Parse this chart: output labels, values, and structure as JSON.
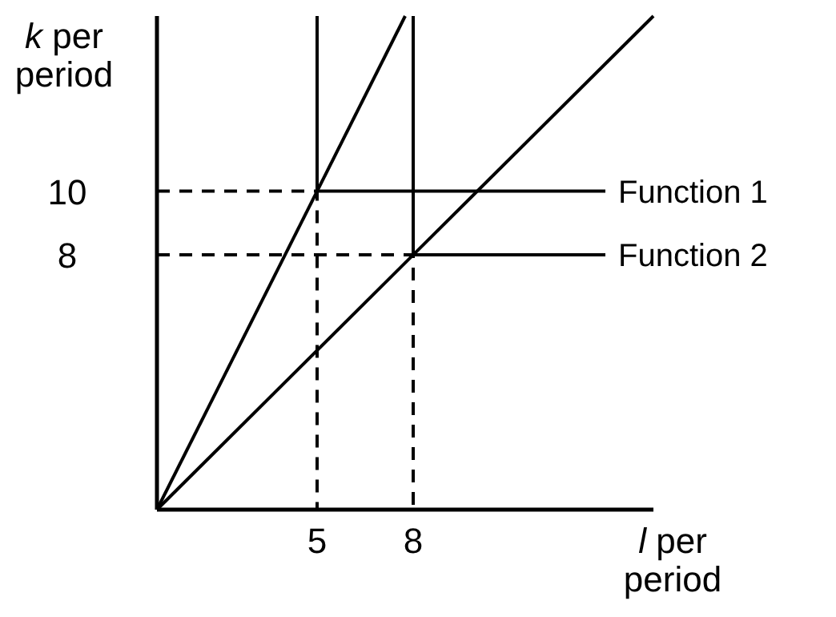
{
  "chart_data": {
    "type": "line",
    "xlabel": "l per period",
    "ylabel": "k per period",
    "xlim": [
      0,
      15.5
    ],
    "ylim": [
      0,
      15.5
    ],
    "xticks": [
      5,
      8
    ],
    "yticks": [
      8,
      10
    ],
    "grid": false,
    "marker": "none",
    "line_style": "solid",
    "series": [
      {
        "name": "Function 1",
        "color": "#000000",
        "x": [
          5,
          5,
          14
        ],
        "values": [
          15.5,
          10,
          10
        ]
      },
      {
        "name": "Function 2",
        "color": "#000000",
        "x": [
          8,
          8,
          14
        ],
        "values": [
          15.5,
          8,
          8
        ]
      },
      {
        "color": "#000000",
        "x": [
          0,
          7.75
        ],
        "values": [
          0,
          15.5
        ]
      },
      {
        "color": "#000000",
        "x": [
          0,
          15.5
        ],
        "values": [
          0,
          15.5
        ]
      },
      {
        "color": "#000000",
        "line_style": "dashed",
        "x": [
          0,
          5,
          5
        ],
        "values": [
          10,
          10,
          0
        ]
      },
      {
        "color": "#000000",
        "line_style": "dashed",
        "x": [
          0,
          8,
          8
        ],
        "values": [
          8,
          8,
          0
        ]
      }
    ]
  }
}
